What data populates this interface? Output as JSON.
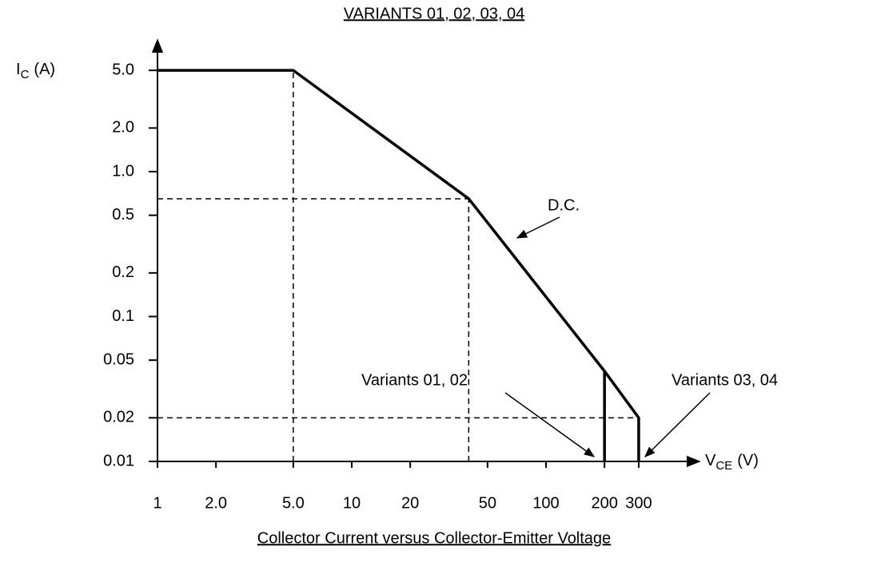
{
  "chart_data": {
    "type": "line",
    "title": "VARIANTS 01, 02, 03, 04",
    "caption": "Collector Current versus Collector-Emitter Voltage",
    "y_label": {
      "main": "I",
      "sub": "C",
      "unit": "(A)"
    },
    "x_label": {
      "main": "V",
      "sub": "CE",
      "unit": "(V)"
    },
    "xscale": "log",
    "yscale": "log",
    "xlim": [
      1,
      500
    ],
    "ylim": [
      0.01,
      8
    ],
    "xticks": [
      1,
      {
        "value": 2,
        "label": "2.0"
      },
      {
        "value": 5,
        "label": "5.0"
      },
      10,
      20,
      50,
      100,
      200,
      300
    ],
    "yticks": [
      0.01,
      0.02,
      0.05,
      0.1,
      0.2,
      0.5,
      {
        "value": 1,
        "label": "1.0"
      },
      {
        "value": 2,
        "label": "2.0"
      },
      {
        "value": 5,
        "label": "5.0"
      }
    ],
    "color": "#000000",
    "series": [
      {
        "x": [
          1,
          5,
          40,
          200,
          300,
          300
        ],
        "values": [
          5,
          5,
          0.65,
          0.042,
          0.02,
          0.01
        ]
      },
      {
        "x": [
          200,
          200
        ],
        "values": [
          0.042,
          0.01
        ]
      }
    ],
    "guides": [
      {
        "x": [
          5,
          5
        ],
        "values": [
          0.01,
          5
        ]
      },
      {
        "x": [
          40,
          40
        ],
        "values": [
          0.01,
          0.65
        ]
      },
      {
        "x": [
          1,
          40
        ],
        "values": [
          0.65,
          0.65
        ]
      },
      {
        "x": [
          1,
          300
        ],
        "values": [
          0.02,
          0.02
        ]
      }
    ],
    "annotations": [
      "D.C.",
      "Variants 01, 02",
      "Variants 03, 04"
    ]
  }
}
